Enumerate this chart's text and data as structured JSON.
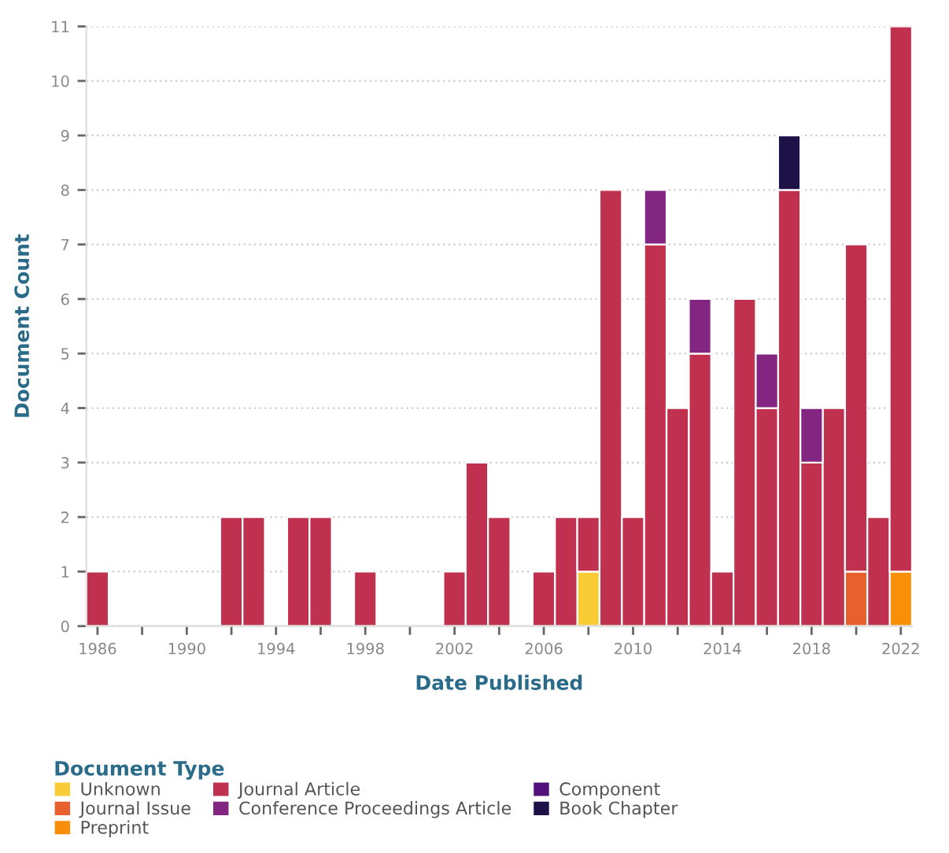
{
  "chart_data": {
    "type": "bar",
    "stacked": true,
    "xlabel": "Date Published",
    "ylabel": "Document Count",
    "legend_title": "Document Type",
    "x": [
      1986,
      1992,
      1993,
      1995,
      1996,
      1998,
      2002,
      2003,
      2004,
      2006,
      2007,
      2008,
      2009,
      2010,
      2011,
      2012,
      2013,
      2014,
      2015,
      2016,
      2017,
      2018,
      2019,
      2020,
      2021,
      2022
    ],
    "series": [
      {
        "name": "Unknown",
        "color": "#f9cb35",
        "values": [
          null,
          null,
          null,
          null,
          null,
          null,
          null,
          null,
          null,
          null,
          null,
          1,
          null,
          null,
          null,
          null,
          null,
          null,
          null,
          null,
          null,
          null,
          null,
          null,
          null,
          null
        ]
      },
      {
        "name": "Journal Issue",
        "color": "#e8602d",
        "values": [
          null,
          null,
          null,
          null,
          null,
          null,
          null,
          null,
          null,
          null,
          null,
          null,
          null,
          null,
          null,
          null,
          null,
          null,
          null,
          null,
          null,
          null,
          null,
          1,
          null,
          null
        ]
      },
      {
        "name": "Preprint",
        "color": "#f98e09",
        "values": [
          null,
          null,
          null,
          null,
          null,
          null,
          null,
          null,
          null,
          null,
          null,
          null,
          null,
          null,
          null,
          null,
          null,
          null,
          null,
          null,
          null,
          null,
          null,
          null,
          null,
          1
        ]
      },
      {
        "name": "Journal Article",
        "color": "#c0314f",
        "values": [
          1,
          2,
          2,
          2,
          2,
          1,
          1,
          3,
          2,
          1,
          2,
          1,
          8,
          2,
          7,
          4,
          5,
          1,
          6,
          4,
          8,
          3,
          4,
          6,
          2,
          10
        ]
      },
      {
        "name": "Conference Proceedings Article",
        "color": "#822681",
        "values": [
          null,
          null,
          null,
          null,
          null,
          null,
          null,
          null,
          null,
          null,
          null,
          null,
          null,
          null,
          1,
          null,
          1,
          null,
          null,
          1,
          null,
          1,
          null,
          null,
          null,
          null
        ]
      },
      {
        "name": "Component",
        "color": "#51127c",
        "values": [
          null,
          null,
          null,
          null,
          null,
          null,
          null,
          null,
          null,
          null,
          null,
          null,
          null,
          null,
          null,
          null,
          null,
          null,
          null,
          null,
          null,
          null,
          null,
          null,
          null,
          null
        ]
      },
      {
        "name": "Book Chapter",
        "color": "#1d1147",
        "values": [
          null,
          null,
          null,
          null,
          null,
          null,
          null,
          null,
          null,
          null,
          null,
          null,
          null,
          null,
          null,
          null,
          null,
          null,
          null,
          null,
          1,
          null,
          null,
          null,
          null,
          null
        ]
      }
    ],
    "xlim": [
      1985.5,
      2022.5
    ],
    "xticks": [
      1986,
      {
        "value": 1988,
        "label": null
      },
      1990,
      {
        "value": 1992,
        "label": null
      },
      1994,
      {
        "value": 1996,
        "label": null
      },
      1998,
      {
        "value": 2000,
        "label": null
      },
      2002,
      {
        "value": 2004,
        "label": null
      },
      2006,
      {
        "value": 2008,
        "label": null
      },
      2010,
      {
        "value": 2012,
        "label": null
      },
      2014,
      {
        "value": 2016,
        "label": null
      },
      2018,
      {
        "value": 2020,
        "label": null
      },
      2022
    ],
    "ylim": [
      0,
      11
    ],
    "yticks": [
      0,
      1,
      2,
      3,
      4,
      5,
      6,
      7,
      8,
      9,
      10,
      11
    ],
    "grid": "y",
    "legend": "bottom"
  }
}
